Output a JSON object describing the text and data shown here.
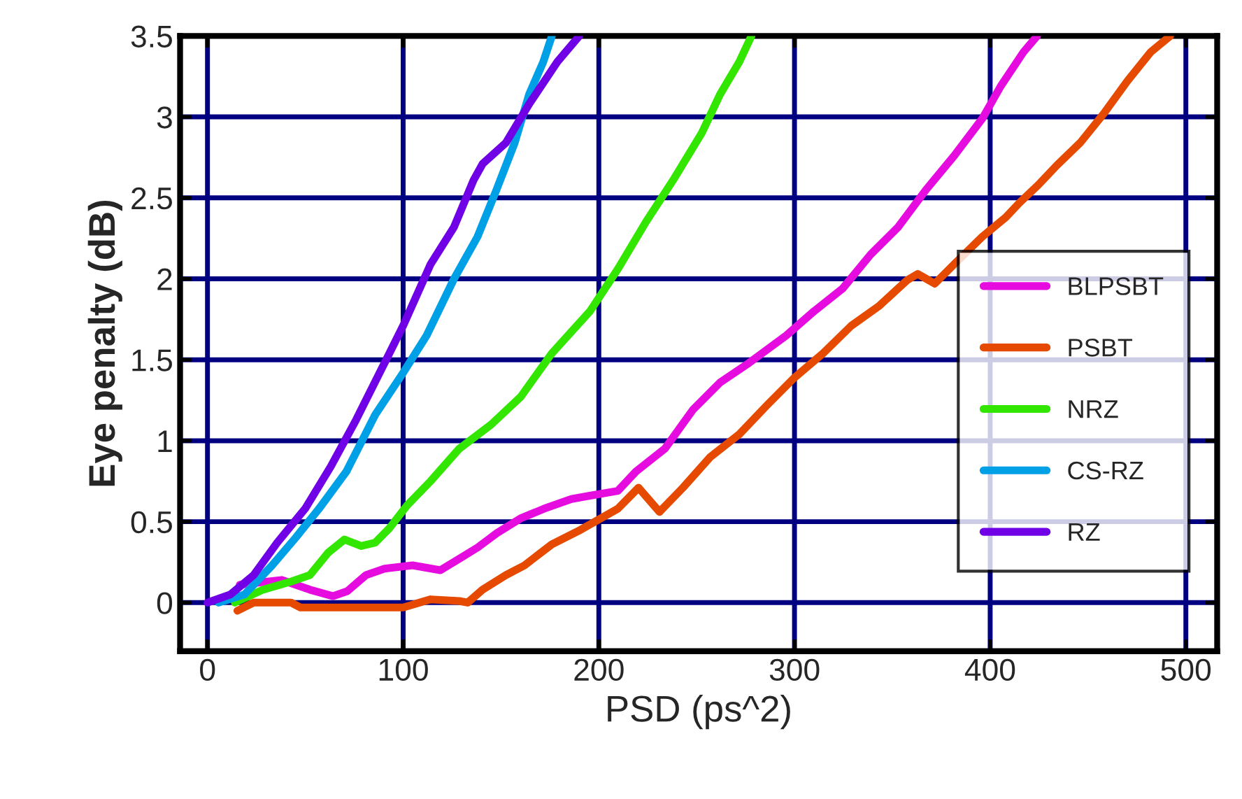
{
  "chart_data": {
    "type": "line",
    "xlabel": "PSD (ps^2)",
    "ylabel": "Eye penalty (dB)",
    "xlim": [
      -14,
      516
    ],
    "ylim": [
      -0.3,
      3.5
    ],
    "xticks": [
      0,
      100,
      200,
      300,
      400,
      500
    ],
    "yticks": [
      0,
      {
        "value": 0.5,
        "label": "0.5"
      },
      1,
      {
        "value": 1.5,
        "label": "1.5"
      },
      2,
      {
        "value": 2.5,
        "label": "2.5"
      },
      3,
      {
        "value": 3.5,
        "label": "3.5"
      }
    ],
    "grid": true,
    "legend": "right",
    "line_style": "solid",
    "marker": "none",
    "series": [
      {
        "name": "BLPSBT",
        "color": "#e60ce0",
        "x": [
          16.5,
          38,
          52.3,
          64.2,
          71.4,
          81,
          90.5,
          104.8,
          119,
          128.6,
          138,
          148,
          160,
          172,
          186,
          195.4,
          209.7,
          219,
          233.7,
          248,
          262,
          276.7,
          295.8,
          310,
          324.6,
          338.9,
          353,
          367.2,
          381.6,
          396,
          405.4,
          417,
          424
        ],
        "values": [
          0.11,
          0.14,
          0.08,
          0.04,
          0.07,
          0.17,
          0.21,
          0.23,
          0.2,
          0.27,
          0.34,
          0.43,
          0.52,
          0.58,
          0.64,
          0.66,
          0.69,
          0.81,
          0.95,
          1.19,
          1.36,
          1.48,
          1.65,
          1.8,
          1.94,
          2.15,
          2.32,
          2.55,
          2.76,
          2.99,
          3.19,
          3.4,
          3.5
        ]
      },
      {
        "name": "PSBT",
        "color": "#e64a00",
        "x": [
          15.3,
          23.6,
          42.7,
          47.5,
          100,
          114,
          128.6,
          133,
          140.6,
          152.5,
          162,
          176,
          190.7,
          209.7,
          220.3,
          231,
          243,
          257,
          271.8,
          286,
          300,
          314.6,
          329,
          343,
          357.4,
          363,
          371.7,
          381.6,
          396,
          408,
          415,
          424.6,
          434,
          446,
          458,
          470,
          482,
          492
        ],
        "values": [
          -0.05,
          0,
          0,
          -0.03,
          -0.03,
          0.02,
          0.01,
          0,
          0.08,
          0.17,
          0.23,
          0.36,
          0.45,
          0.58,
          0.71,
          0.56,
          0.71,
          0.9,
          1.04,
          1.22,
          1.39,
          1.54,
          1.71,
          1.83,
          1.99,
          2.03,
          1.97,
          2.09,
          2.26,
          2.38,
          2.47,
          2.58,
          2.7,
          2.84,
          3.02,
          3.22,
          3.4,
          3.5
        ]
      },
      {
        "name": "NRZ",
        "color": "#33e600",
        "x": [
          14,
          28.4,
          42.7,
          52.3,
          61.8,
          70,
          78.5,
          85.7,
          93,
          102,
          114,
          128.6,
          145,
          160,
          176,
          195.5,
          209.7,
          224,
          238,
          252.6,
          262,
          271.8,
          278
        ],
        "values": [
          0,
          0.08,
          0.13,
          0.17,
          0.31,
          0.39,
          0.35,
          0.37,
          0.46,
          0.6,
          0.75,
          0.95,
          1.1,
          1.27,
          1.54,
          1.8,
          2.06,
          2.35,
          2.61,
          2.9,
          3.14,
          3.34,
          3.5
        ]
      },
      {
        "name": "CS-RZ",
        "color": "#00a0e6",
        "x": [
          5.7,
          18.9,
          33,
          45,
          57,
          71,
          85.7,
          100,
          112,
          126,
          138,
          147.7,
          157,
          164.4,
          171.6,
          176
        ],
        "values": [
          0,
          0.05,
          0.23,
          0.4,
          0.58,
          0.81,
          1.16,
          1.42,
          1.65,
          2.0,
          2.26,
          2.55,
          2.84,
          3.14,
          3.34,
          3.5
        ]
      },
      {
        "name": "RZ",
        "color": "#7000e6",
        "x": [
          0,
          11.7,
          23.6,
          35.6,
          49.9,
          63,
          76,
          90.5,
          100,
          114,
          126,
          136,
          140.6,
          152.5,
          164.4,
          178.8,
          190
        ],
        "values": [
          0,
          0.05,
          0.17,
          0.37,
          0.58,
          0.84,
          1.13,
          1.48,
          1.71,
          2.09,
          2.32,
          2.61,
          2.71,
          2.84,
          3.08,
          3.34,
          3.5
        ]
      }
    ]
  }
}
